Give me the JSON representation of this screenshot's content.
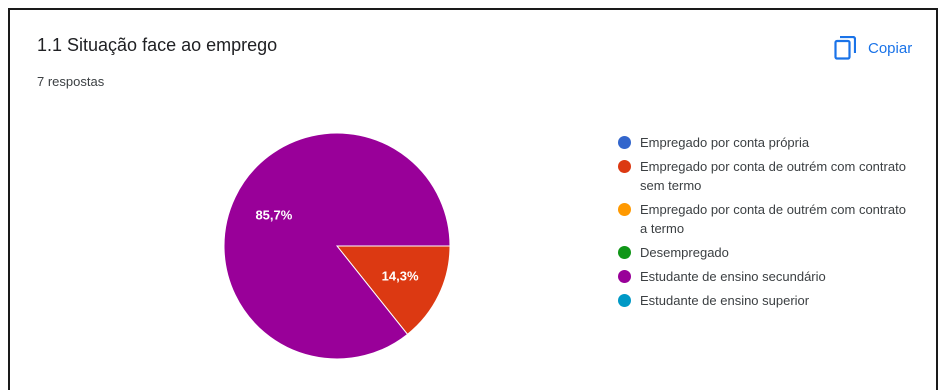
{
  "header": {
    "title": "1.1 Situação face ao emprego",
    "responses": "7 respostas",
    "copy_label": "Copiar",
    "copy_icon": "copy-icon"
  },
  "colors": {
    "accent": "#1a73e8"
  },
  "chart_data": {
    "type": "pie",
    "title": "1.1 Situação face ao emprego",
    "legend_position": "right",
    "categories": [
      "Empregado por conta própria",
      "Empregado por conta de outrém com contrato sem termo",
      "Empregado por conta de outrém com contrato a termo",
      "Desempregado",
      "Estudante de ensino secundário",
      "Estudante de ensino superior"
    ],
    "colors": [
      "#3366cc",
      "#dc3912",
      "#ff9900",
      "#109618",
      "#990099",
      "#0099c6"
    ],
    "values": [
      0,
      1,
      0,
      0,
      6,
      0
    ],
    "percent_labels": [
      "",
      "14,3%",
      "",
      "",
      "85,7%",
      ""
    ]
  }
}
